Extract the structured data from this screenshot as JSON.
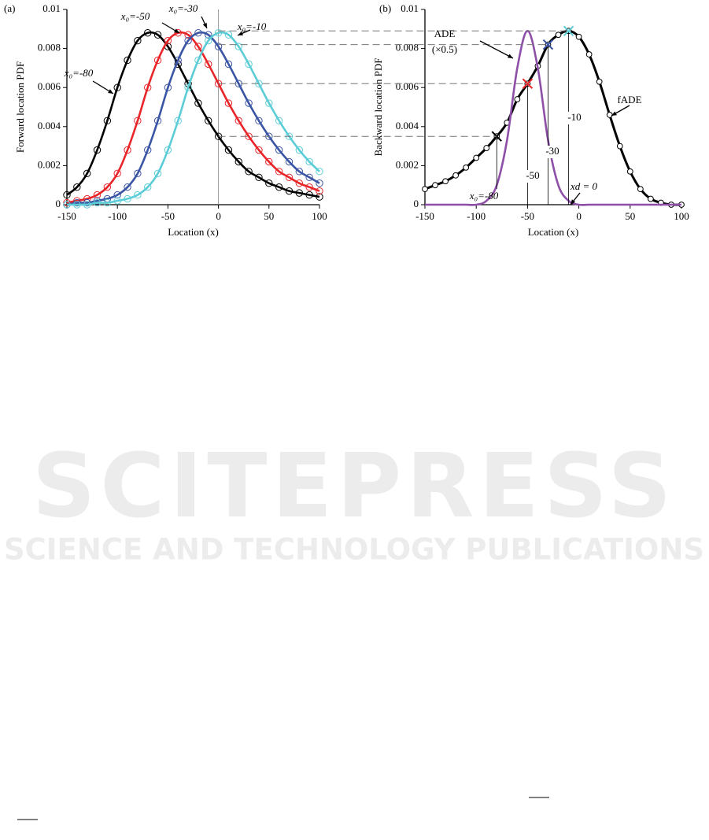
{
  "chart_data": [
    {
      "type": "line",
      "panel_label": "(a)",
      "y_label": "Forward location PDF",
      "x_label": "Location (x)",
      "x": [
        -150,
        -140,
        -130,
        -120,
        -110,
        -100,
        -90,
        -80,
        -70,
        -60,
        -50,
        -40,
        -30,
        -20,
        -10,
        0,
        10,
        20,
        30,
        40,
        50,
        60,
        70,
        80,
        90,
        100
      ],
      "series": [
        {
          "color": "#000000",
          "markers": true,
          "values": [
            0.0005,
            0.0009,
            0.0016,
            0.0028,
            0.0043,
            0.006,
            0.0074,
            0.0084,
            0.0088,
            0.0087,
            0.0081,
            0.0072,
            0.0062,
            0.0052,
            0.0043,
            0.0035,
            0.0028,
            0.0022,
            0.0017,
            0.0014,
            0.0011,
            0.0009,
            0.0007,
            0.0006,
            0.0005,
            0.0004
          ]
        },
        {
          "color": "#e8262a",
          "markers": true,
          "values": [
            0.0001,
            0.0002,
            0.0003,
            0.0005,
            0.0009,
            0.0016,
            0.0028,
            0.0043,
            0.006,
            0.0074,
            0.0084,
            0.0088,
            0.0087,
            0.0081,
            0.0072,
            0.0062,
            0.0052,
            0.0043,
            0.0035,
            0.0028,
            0.0022,
            0.0017,
            0.0014,
            0.0011,
            0.0009,
            0.0007
          ]
        },
        {
          "color": "#3a55a4",
          "markers": true,
          "values": [
            0,
            0.0001,
            0.0001,
            0.0002,
            0.0003,
            0.0005,
            0.0009,
            0.0016,
            0.0028,
            0.0043,
            0.006,
            0.0074,
            0.0084,
            0.0088,
            0.0087,
            0.0081,
            0.0072,
            0.0062,
            0.0052,
            0.0043,
            0.0035,
            0.0028,
            0.0022,
            0.0017,
            0.0014,
            0.0011
          ]
        },
        {
          "color": "#5ccdd6",
          "markers": true,
          "values": [
            0,
            0,
            0,
            0.0001,
            0.0001,
            0.0002,
            0.0003,
            0.0005,
            0.0009,
            0.0016,
            0.0028,
            0.0043,
            0.006,
            0.0074,
            0.0084,
            0.0088,
            0.0087,
            0.0081,
            0.0072,
            0.0062,
            0.0052,
            0.0043,
            0.0035,
            0.0028,
            0.0022,
            0.0017
          ]
        }
      ],
      "xlim": [
        -150,
        100
      ],
      "xticks": [
        -150,
        -100,
        -50,
        0,
        50,
        100
      ],
      "ylim": [
        0,
        0.01
      ],
      "yticks": [
        0,
        0.002,
        0.004,
        0.006,
        0.008,
        0.01
      ],
      "annotations": [
        "x₀=-80",
        "x₀=-50",
        "x₀=-30",
        "x₀=-10"
      ]
    },
    {
      "type": "line",
      "panel_label": "(b)",
      "y_label": "Backward location PDF",
      "x_label": "Location (x)",
      "x": [
        -150,
        -140,
        -130,
        -120,
        -110,
        -100,
        -90,
        -80,
        -70,
        -60,
        -50,
        -40,
        -30,
        -20,
        -10,
        0,
        10,
        20,
        30,
        40,
        50,
        60,
        70,
        80,
        90,
        100
      ],
      "series": [
        {
          "color": "#000000",
          "markers": true,
          "values": [
            0.0008,
            0.001,
            0.0012,
            0.0015,
            0.0019,
            0.0024,
            0.0029,
            0.0035,
            0.0042,
            0.0054,
            0.0062,
            0.0071,
            0.0082,
            0.0087,
            0.0089,
            0.0086,
            0.0077,
            0.0063,
            0.0046,
            0.003,
            0.0017,
            0.0008,
            0.0003,
            0.0001,
            0,
            0
          ]
        },
        {
          "color": "#8e4fa8",
          "markers": false,
          "values": [
            0,
            0,
            0,
            0,
            0,
            0,
            0.0002,
            0.001,
            0.0033,
            0.007,
            0.0089,
            0.007,
            0.0033,
            0.001,
            0.0002,
            0,
            0,
            0,
            0,
            0,
            0,
            0,
            0,
            0,
            0,
            0
          ]
        }
      ],
      "crosses": {
        "x": [
          -80,
          -50,
          -30,
          -10
        ],
        "values": [
          0.0035,
          0.0062,
          0.0082,
          0.0089
        ],
        "colors": [
          "#000000",
          "#e8262a",
          "#3a55a4",
          "#5ccdd6"
        ]
      },
      "xlim": [
        -150,
        100
      ],
      "xticks": [
        -150,
        -100,
        -50,
        0,
        50,
        100
      ],
      "ylim": [
        0,
        0.01
      ],
      "yticks": [
        0,
        0.002,
        0.004,
        0.006,
        0.008,
        0.01
      ],
      "annotations": [
        "ADE",
        "(×0.5)",
        "fADE",
        "xd = 0",
        "-10",
        "-30",
        "-50",
        "x₀=-80"
      ]
    }
  ],
  "watermark": {
    "title": "SCITEPRESS",
    "subtitle": "SCIENCE AND TECHNOLOGY PUBLICATIONS"
  }
}
